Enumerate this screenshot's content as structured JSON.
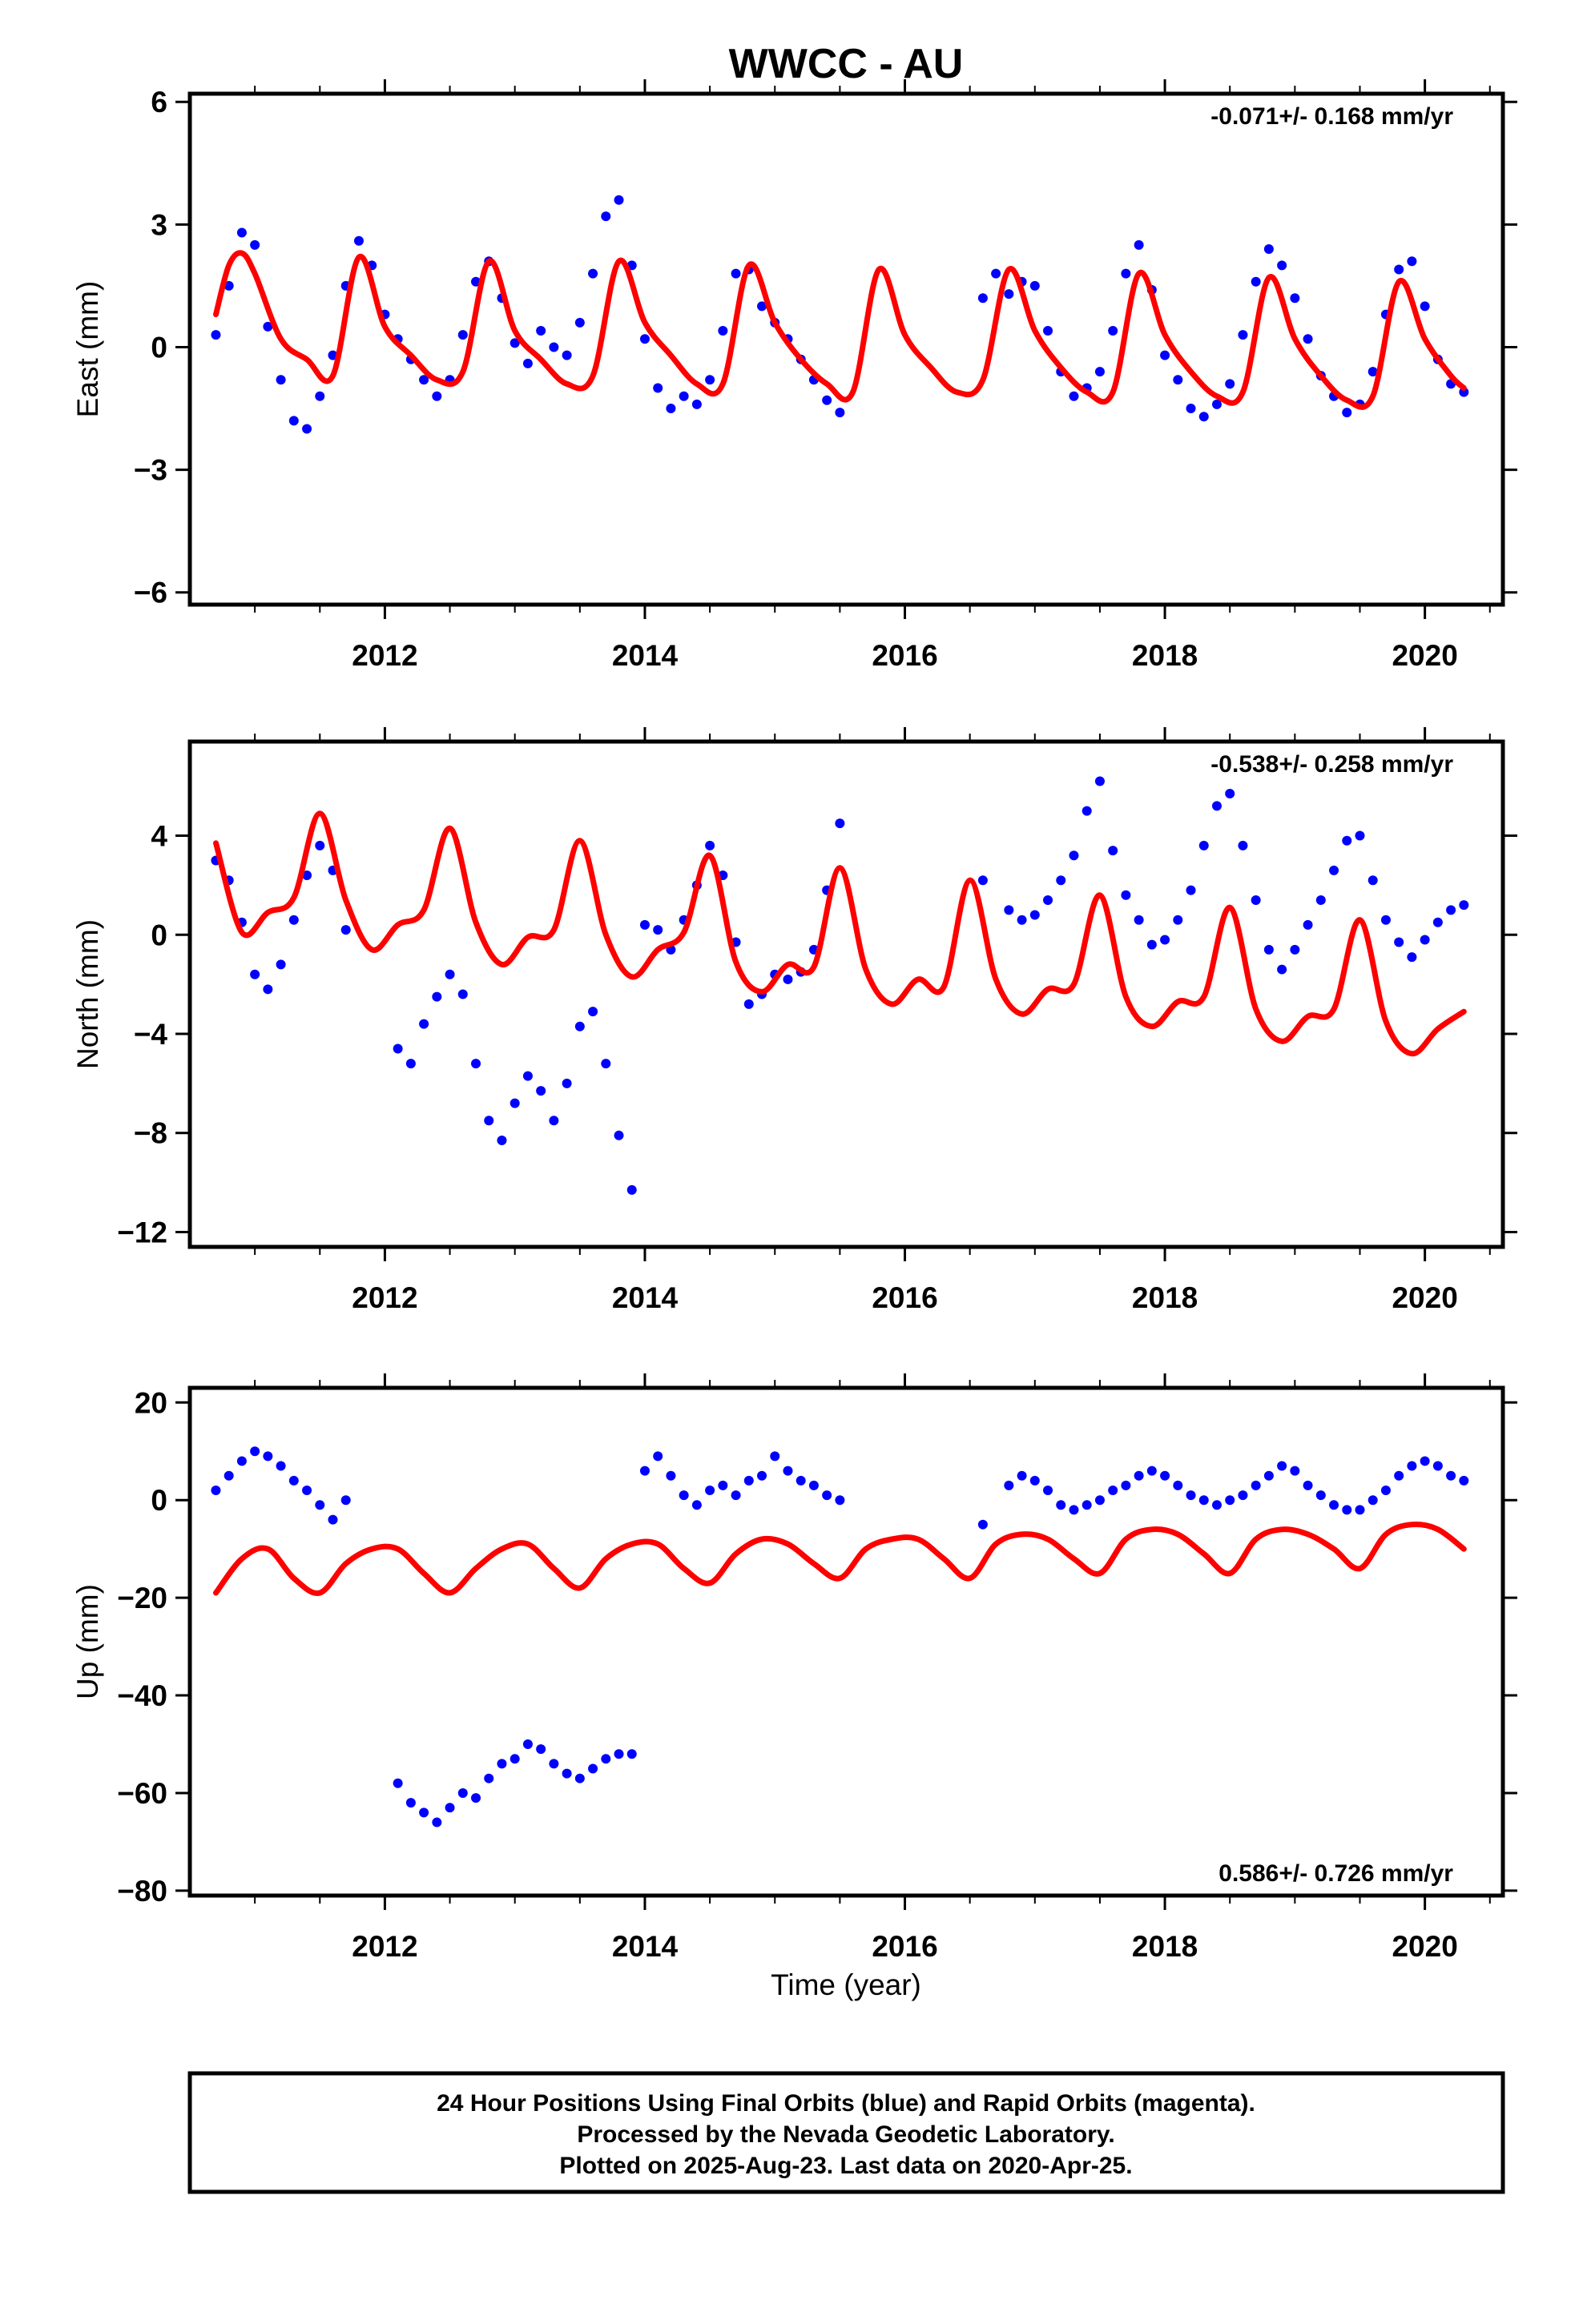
{
  "title": "WWCC - AU",
  "xlabel": "Time (year)",
  "footer": {
    "line1": "24 Hour Positions Using Final Orbits (blue) and Rapid Orbits (magenta).",
    "line2": "Processed by the Nevada Geodetic Laboratory.",
    "line3": "Plotted on 2025-Aug-23. Last data on 2020-Apr-25."
  },
  "colors": {
    "observed": "#0000ff",
    "model": "#ff0000",
    "frame": "#000000"
  },
  "chart_data": [
    {
      "type": "scatter",
      "ylabel": "East (mm)",
      "rate_text": "-0.071+/- 0.168 mm/yr",
      "rate_position": "top-right",
      "xlim": [
        2010.5,
        2020.6
      ],
      "ylim": [
        -6.3,
        6.2
      ],
      "xticks": [
        2012,
        2014,
        2016,
        2018,
        2020
      ],
      "yticks": [
        -6,
        -3,
        0,
        3,
        6
      ],
      "ytick_labels": [
        "−6",
        "−3",
        "0",
        "3",
        "6"
      ],
      "series": [
        {
          "x": [
            2010.7,
            2010.8,
            2010.9,
            2011.0,
            2011.1,
            2011.2,
            2011.3,
            2011.4,
            2011.5,
            2011.6,
            2011.7,
            2011.8,
            2011.9,
            2012.0,
            2012.1,
            2012.2,
            2012.3,
            2012.4,
            2012.5,
            2012.6,
            2012.7,
            2012.8,
            2012.9,
            2013.0,
            2013.1,
            2013.2,
            2013.3,
            2013.4,
            2013.5,
            2013.6,
            2013.7,
            2013.8,
            2013.9,
            2014.0,
            2014.1,
            2014.2,
            2014.3,
            2014.4,
            2014.5,
            2014.6,
            2014.7,
            2014.8,
            2014.9,
            2015.0,
            2015.1,
            2015.2,
            2015.3,
            2015.4,
            2015.5,
            2016.6,
            2016.7,
            2016.8,
            2016.9,
            2017.0,
            2017.1,
            2017.2,
            2017.3,
            2017.4,
            2017.5,
            2017.6,
            2017.7,
            2017.8,
            2017.9,
            2018.0,
            2018.1,
            2018.2,
            2018.3,
            2018.4,
            2018.5,
            2018.6,
            2018.7,
            2018.8,
            2018.9,
            2019.0,
            2019.1,
            2019.2,
            2019.3,
            2019.4,
            2019.5,
            2019.6,
            2019.7,
            2019.8,
            2019.9,
            2020.0,
            2020.1,
            2020.2,
            2020.3
          ],
          "y": [
            0.3,
            1.5,
            2.8,
            2.5,
            0.5,
            -0.8,
            -1.8,
            -2.0,
            -1.2,
            -0.2,
            1.5,
            2.6,
            2.0,
            0.8,
            0.2,
            -0.3,
            -0.8,
            -1.2,
            -0.8,
            0.3,
            1.6,
            2.1,
            1.2,
            0.1,
            -0.4,
            0.4,
            0.0,
            -0.2,
            0.6,
            1.8,
            3.2,
            3.6,
            2.0,
            0.2,
            -1.0,
            -1.5,
            -1.2,
            -1.4,
            -0.8,
            0.4,
            1.8,
            1.9,
            1.0,
            0.6,
            0.2,
            -0.3,
            -0.8,
            -1.3,
            -1.6,
            1.2,
            1.8,
            1.3,
            1.6,
            1.5,
            0.4,
            -0.6,
            -1.2,
            -1.0,
            -0.6,
            0.4,
            1.8,
            2.5,
            1.4,
            -0.2,
            -0.8,
            -1.5,
            -1.7,
            -1.4,
            -0.9,
            0.3,
            1.6,
            2.4,
            2.0,
            1.2,
            0.2,
            -0.7,
            -1.2,
            -1.6,
            -1.4,
            -0.6,
            0.8,
            1.9,
            2.1,
            1.0,
            -0.3,
            -0.9,
            -1.1
          ]
        },
        {
          "x": [
            2010.7,
            2010.8,
            2010.9,
            2011.0,
            2011.2,
            2011.4,
            2011.6,
            2011.8,
            2012.0,
            2012.2,
            2012.4,
            2012.6,
            2012.8,
            2013.0,
            2013.2,
            2013.4,
            2013.6,
            2013.8,
            2014.0,
            2014.2,
            2014.4,
            2014.6,
            2014.8,
            2015.0,
            2015.2,
            2015.4,
            2015.6,
            2015.8,
            2016.0,
            2016.2,
            2016.4,
            2016.6,
            2016.8,
            2017.0,
            2017.2,
            2017.4,
            2017.6,
            2017.8,
            2018.0,
            2018.2,
            2018.4,
            2018.6,
            2018.8,
            2019.0,
            2019.2,
            2019.4,
            2019.6,
            2019.8,
            2020.0,
            2020.2,
            2020.3
          ],
          "y": [
            0.8,
            2.0,
            2.3,
            1.8,
            0.2,
            -0.3,
            -0.7,
            2.2,
            0.5,
            -0.2,
            -0.8,
            -0.6,
            2.1,
            0.4,
            -0.3,
            -0.9,
            -0.7,
            2.1,
            0.6,
            -0.2,
            -0.9,
            -0.9,
            2.0,
            0.6,
            -0.3,
            -0.9,
            -1.1,
            1.9,
            0.3,
            -0.5,
            -1.1,
            -0.8,
            1.9,
            0.4,
            -0.5,
            -1.1,
            -1.1,
            1.8,
            0.3,
            -0.6,
            -1.2,
            -1.1,
            1.7,
            0.2,
            -0.7,
            -1.3,
            -1.2,
            1.6,
            0.2,
            -0.7,
            -1.0
          ]
        }
      ],
      "legend": []
    },
    {
      "type": "scatter",
      "ylabel": "North (mm)",
      "rate_text": "-0.538+/- 0.258 mm/yr",
      "rate_position": "top-right",
      "xlim": [
        2010.5,
        2020.6
      ],
      "ylim": [
        -12.6,
        7.8
      ],
      "xticks": [
        2012,
        2014,
        2016,
        2018,
        2020
      ],
      "yticks": [
        -12,
        -8,
        -4,
        0,
        4
      ],
      "ytick_labels": [
        "−12",
        "−8",
        "−4",
        "0",
        "4"
      ],
      "series": [
        {
          "x": [
            2010.7,
            2010.8,
            2010.9,
            2011.0,
            2011.1,
            2011.2,
            2011.3,
            2011.4,
            2011.5,
            2011.6,
            2011.7,
            2012.1,
            2012.2,
            2012.3,
            2012.4,
            2012.5,
            2012.6,
            2012.7,
            2012.8,
            2012.9,
            2013.0,
            2013.1,
            2013.2,
            2013.3,
            2013.4,
            2013.5,
            2013.6,
            2013.7,
            2013.8,
            2013.9,
            2014.0,
            2014.1,
            2014.2,
            2014.3,
            2014.4,
            2014.5,
            2014.6,
            2014.7,
            2014.8,
            2014.9,
            2015.0,
            2015.1,
            2015.2,
            2015.3,
            2015.4,
            2015.5,
            2016.6,
            2016.8,
            2016.9,
            2017.0,
            2017.1,
            2017.2,
            2017.3,
            2017.4,
            2017.5,
            2017.6,
            2017.7,
            2017.8,
            2017.9,
            2018.0,
            2018.1,
            2018.2,
            2018.3,
            2018.4,
            2018.5,
            2018.6,
            2018.7,
            2018.8,
            2018.9,
            2019.0,
            2019.1,
            2019.2,
            2019.3,
            2019.4,
            2019.5,
            2019.6,
            2019.7,
            2019.8,
            2019.9,
            2020.0,
            2020.1,
            2020.2,
            2020.3
          ],
          "y": [
            3.0,
            2.2,
            0.5,
            -1.6,
            -2.2,
            -1.2,
            0.6,
            2.4,
            3.6,
            2.6,
            0.2,
            -4.6,
            -5.2,
            -3.6,
            -2.5,
            -1.6,
            -2.4,
            -5.2,
            -7.5,
            -8.3,
            -6.8,
            -5.7,
            -6.3,
            -7.5,
            -6.0,
            -3.7,
            -3.1,
            -5.2,
            -8.1,
            -10.3,
            0.4,
            0.2,
            -0.6,
            0.6,
            2.0,
            3.6,
            2.4,
            -0.3,
            -2.8,
            -2.4,
            -1.6,
            -1.8,
            -1.5,
            -0.6,
            1.8,
            4.5,
            2.2,
            1.0,
            0.6,
            0.8,
            1.4,
            2.2,
            3.2,
            5.0,
            6.2,
            3.4,
            1.6,
            0.6,
            -0.4,
            -0.2,
            0.6,
            1.8,
            3.6,
            5.2,
            5.7,
            3.6,
            1.4,
            -0.6,
            -1.4,
            -0.6,
            0.4,
            1.4,
            2.6,
            3.8,
            4.0,
            2.2,
            0.6,
            -0.3,
            -0.9,
            -0.2,
            0.5,
            1.0,
            1.2
          ]
        },
        {
          "x": [
            2010.7,
            2010.9,
            2011.1,
            2011.3,
            2011.5,
            2011.7,
            2011.9,
            2012.1,
            2012.3,
            2012.5,
            2012.7,
            2012.9,
            2013.1,
            2013.3,
            2013.5,
            2013.7,
            2013.9,
            2014.1,
            2014.3,
            2014.5,
            2014.7,
            2014.9,
            2015.1,
            2015.3,
            2015.5,
            2015.7,
            2015.9,
            2016.1,
            2016.3,
            2016.5,
            2016.7,
            2016.9,
            2017.1,
            2017.3,
            2017.5,
            2017.7,
            2017.9,
            2018.1,
            2018.3,
            2018.5,
            2018.7,
            2018.9,
            2019.1,
            2019.3,
            2019.5,
            2019.7,
            2019.9,
            2020.1,
            2020.3
          ],
          "y": [
            3.7,
            0.1,
            0.9,
            1.5,
            4.9,
            1.4,
            -0.6,
            0.4,
            1.0,
            4.3,
            0.5,
            -1.2,
            -0.1,
            0.2,
            3.8,
            0.0,
            -1.7,
            -0.6,
            0.1,
            3.2,
            -1.1,
            -2.3,
            -1.2,
            -1.3,
            2.7,
            -1.4,
            -2.8,
            -1.8,
            -2.1,
            2.2,
            -1.8,
            -3.2,
            -2.2,
            -2.0,
            1.6,
            -2.5,
            -3.7,
            -2.7,
            -2.5,
            1.1,
            -3.0,
            -4.3,
            -3.3,
            -3.0,
            0.6,
            -3.5,
            -4.8,
            -3.8,
            -3.1
          ]
        }
      ],
      "legend": []
    },
    {
      "type": "scatter",
      "ylabel": "Up (mm)",
      "rate_text": "0.586+/- 0.726 mm/yr",
      "rate_position": "bottom-right",
      "xlim": [
        2010.5,
        2020.6
      ],
      "ylim": [
        -81,
        23
      ],
      "xticks": [
        2012,
        2014,
        2016,
        2018,
        2020
      ],
      "yticks": [
        -80,
        -60,
        -40,
        -20,
        0,
        20
      ],
      "ytick_labels": [
        "−80",
        "−60",
        "−40",
        "−20",
        "0",
        "20"
      ],
      "series": [
        {
          "x": [
            2010.7,
            2010.8,
            2010.9,
            2011.0,
            2011.1,
            2011.2,
            2011.3,
            2011.4,
            2011.5,
            2011.6,
            2011.7,
            2012.1,
            2012.2,
            2012.3,
            2012.4,
            2012.5,
            2012.6,
            2012.7,
            2012.8,
            2012.9,
            2013.0,
            2013.1,
            2013.2,
            2013.3,
            2013.4,
            2013.5,
            2013.6,
            2013.7,
            2013.8,
            2013.9,
            2014.0,
            2014.1,
            2014.2,
            2014.3,
            2014.4,
            2014.5,
            2014.6,
            2014.7,
            2014.8,
            2014.9,
            2015.0,
            2015.1,
            2015.2,
            2015.3,
            2015.4,
            2015.5,
            2016.6,
            2016.8,
            2016.9,
            2017.0,
            2017.1,
            2017.2,
            2017.3,
            2017.4,
            2017.5,
            2017.6,
            2017.7,
            2017.8,
            2017.9,
            2018.0,
            2018.1,
            2018.2,
            2018.3,
            2018.4,
            2018.5,
            2018.6,
            2018.7,
            2018.8,
            2018.9,
            2019.0,
            2019.1,
            2019.2,
            2019.3,
            2019.4,
            2019.5,
            2019.6,
            2019.7,
            2019.8,
            2019.9,
            2020.0,
            2020.1,
            2020.2,
            2020.3
          ],
          "y": [
            2,
            5,
            8,
            10,
            9,
            7,
            4,
            2,
            -1,
            -4,
            0,
            -58,
            -62,
            -64,
            -66,
            -63,
            -60,
            -61,
            -57,
            -54,
            -53,
            -50,
            -51,
            -54,
            -56,
            -57,
            -55,
            -53,
            -52,
            -52,
            6,
            9,
            5,
            1,
            -1,
            2,
            3,
            1,
            4,
            5,
            9,
            6,
            4,
            3,
            1,
            0,
            -5,
            3,
            5,
            4,
            2,
            -1,
            -2,
            -1,
            0,
            2,
            3,
            5,
            6,
            5,
            3,
            1,
            0,
            -1,
            0,
            1,
            3,
            5,
            7,
            6,
            3,
            1,
            -1,
            -2,
            -2,
            0,
            2,
            5,
            7,
            8,
            7,
            5,
            4
          ]
        },
        {
          "x": [
            2010.7,
            2010.9,
            2011.1,
            2011.3,
            2011.5,
            2011.7,
            2011.9,
            2012.1,
            2012.3,
            2012.5,
            2012.7,
            2012.9,
            2013.1,
            2013.3,
            2013.5,
            2013.7,
            2013.9,
            2014.1,
            2014.3,
            2014.5,
            2014.7,
            2014.9,
            2015.1,
            2015.3,
            2015.5,
            2015.7,
            2015.9,
            2016.1,
            2016.3,
            2016.5,
            2016.7,
            2016.9,
            2017.1,
            2017.3,
            2017.5,
            2017.7,
            2017.9,
            2018.1,
            2018.3,
            2018.5,
            2018.7,
            2018.9,
            2019.1,
            2019.3,
            2019.5,
            2019.7,
            2019.9,
            2020.1,
            2020.3
          ],
          "y": [
            -19,
            -12,
            -10,
            -16,
            -19,
            -13,
            -10,
            -10,
            -15,
            -19,
            -14,
            -10,
            -9,
            -14,
            -18,
            -12,
            -9,
            -9,
            -14,
            -17,
            -11,
            -8,
            -9,
            -13,
            -16,
            -10,
            -8,
            -8,
            -12,
            -16,
            -9,
            -7,
            -8,
            -12,
            -15,
            -8,
            -6,
            -7,
            -11,
            -15,
            -8,
            -6,
            -7,
            -10,
            -14,
            -7,
            -5,
            -6,
            -10
          ]
        }
      ],
      "legend": []
    }
  ]
}
